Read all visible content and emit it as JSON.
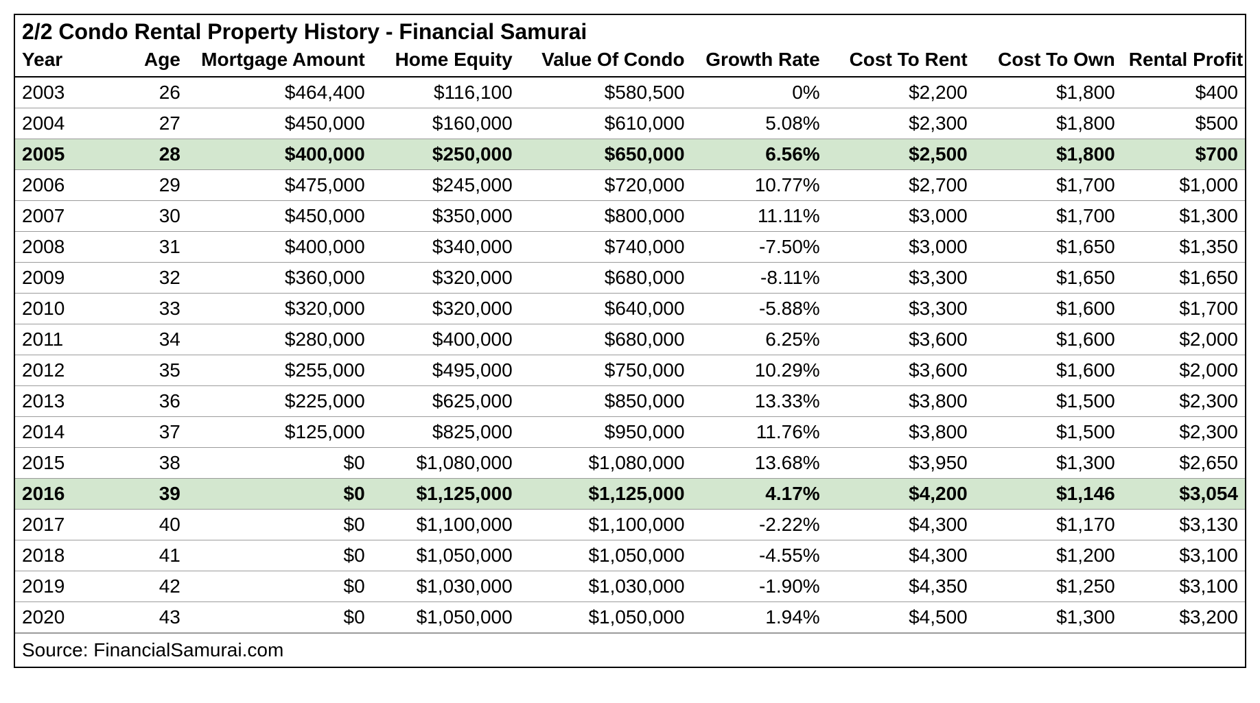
{
  "table": {
    "title": "2/2 Condo Rental Property History - Financial Samurai",
    "source": "Source: FinancialSamurai.com",
    "background_color": "#ffffff",
    "border_color": "#000000",
    "row_border_color": "#9a9a9a",
    "highlight_color": "#d3e7cf",
    "text_color": "#000000",
    "title_fontsize": 32,
    "header_fontsize": 28,
    "cell_fontsize": 28,
    "columns": [
      {
        "key": "year",
        "label": "Year",
        "align": "left"
      },
      {
        "key": "age",
        "label": "Age",
        "align": "right"
      },
      {
        "key": "mortgage",
        "label": "Mortgage Amount",
        "align": "right"
      },
      {
        "key": "equity",
        "label": "Home Equity",
        "align": "right"
      },
      {
        "key": "value",
        "label": "Value Of Condo",
        "align": "right"
      },
      {
        "key": "growth",
        "label": "Growth Rate",
        "align": "right"
      },
      {
        "key": "cost_rent",
        "label": "Cost To Rent",
        "align": "right"
      },
      {
        "key": "cost_own",
        "label": "Cost To Own",
        "align": "right"
      },
      {
        "key": "profit",
        "label": "Rental Profit",
        "align": "right"
      }
    ],
    "rows": [
      {
        "highlight": false,
        "year": "2003",
        "age": "26",
        "mortgage": "$464,400",
        "equity": "$116,100",
        "value": "$580,500",
        "growth": "0%",
        "cost_rent": "$2,200",
        "cost_own": "$1,800",
        "profit": "$400"
      },
      {
        "highlight": false,
        "year": "2004",
        "age": "27",
        "mortgage": "$450,000",
        "equity": "$160,000",
        "value": "$610,000",
        "growth": "5.08%",
        "cost_rent": "$2,300",
        "cost_own": "$1,800",
        "profit": "$500"
      },
      {
        "highlight": true,
        "year": "2005",
        "age": "28",
        "mortgage": "$400,000",
        "equity": "$250,000",
        "value": "$650,000",
        "growth": "6.56%",
        "cost_rent": "$2,500",
        "cost_own": "$1,800",
        "profit": "$700"
      },
      {
        "highlight": false,
        "year": "2006",
        "age": "29",
        "mortgage": "$475,000",
        "equity": "$245,000",
        "value": "$720,000",
        "growth": "10.77%",
        "cost_rent": "$2,700",
        "cost_own": "$1,700",
        "profit": "$1,000"
      },
      {
        "highlight": false,
        "year": "2007",
        "age": "30",
        "mortgage": "$450,000",
        "equity": "$350,000",
        "value": "$800,000",
        "growth": "11.11%",
        "cost_rent": "$3,000",
        "cost_own": "$1,700",
        "profit": "$1,300"
      },
      {
        "highlight": false,
        "year": "2008",
        "age": "31",
        "mortgage": "$400,000",
        "equity": "$340,000",
        "value": "$740,000",
        "growth": "-7.50%",
        "cost_rent": "$3,000",
        "cost_own": "$1,650",
        "profit": "$1,350"
      },
      {
        "highlight": false,
        "year": "2009",
        "age": "32",
        "mortgage": "$360,000",
        "equity": "$320,000",
        "value": "$680,000",
        "growth": "-8.11%",
        "cost_rent": "$3,300",
        "cost_own": "$1,650",
        "profit": "$1,650"
      },
      {
        "highlight": false,
        "year": "2010",
        "age": "33",
        "mortgage": "$320,000",
        "equity": "$320,000",
        "value": "$640,000",
        "growth": "-5.88%",
        "cost_rent": "$3,300",
        "cost_own": "$1,600",
        "profit": "$1,700"
      },
      {
        "highlight": false,
        "year": "2011",
        "age": "34",
        "mortgage": "$280,000",
        "equity": "$400,000",
        "value": "$680,000",
        "growth": "6.25%",
        "cost_rent": "$3,600",
        "cost_own": "$1,600",
        "profit": "$2,000"
      },
      {
        "highlight": false,
        "year": "2012",
        "age": "35",
        "mortgage": "$255,000",
        "equity": "$495,000",
        "value": "$750,000",
        "growth": "10.29%",
        "cost_rent": "$3,600",
        "cost_own": "$1,600",
        "profit": "$2,000"
      },
      {
        "highlight": false,
        "year": "2013",
        "age": "36",
        "mortgage": "$225,000",
        "equity": "$625,000",
        "value": "$850,000",
        "growth": "13.33%",
        "cost_rent": "$3,800",
        "cost_own": "$1,500",
        "profit": "$2,300"
      },
      {
        "highlight": false,
        "year": "2014",
        "age": "37",
        "mortgage": "$125,000",
        "equity": "$825,000",
        "value": "$950,000",
        "growth": "11.76%",
        "cost_rent": "$3,800",
        "cost_own": "$1,500",
        "profit": "$2,300"
      },
      {
        "highlight": false,
        "year": "2015",
        "age": "38",
        "mortgage": "$0",
        "equity": "$1,080,000",
        "value": "$1,080,000",
        "growth": "13.68%",
        "cost_rent": "$3,950",
        "cost_own": "$1,300",
        "profit": "$2,650"
      },
      {
        "highlight": true,
        "year": "2016",
        "age": "39",
        "mortgage": "$0",
        "equity": "$1,125,000",
        "value": "$1,125,000",
        "growth": "4.17%",
        "cost_rent": "$4,200",
        "cost_own": "$1,146",
        "profit": "$3,054"
      },
      {
        "highlight": false,
        "year": "2017",
        "age": "40",
        "mortgage": "$0",
        "equity": "$1,100,000",
        "value": "$1,100,000",
        "growth": "-2.22%",
        "cost_rent": "$4,300",
        "cost_own": "$1,170",
        "profit": "$3,130"
      },
      {
        "highlight": false,
        "year": "2018",
        "age": "41",
        "mortgage": "$0",
        "equity": "$1,050,000",
        "value": "$1,050,000",
        "growth": "-4.55%",
        "cost_rent": "$4,300",
        "cost_own": "$1,200",
        "profit": "$3,100"
      },
      {
        "highlight": false,
        "year": "2019",
        "age": "42",
        "mortgage": "$0",
        "equity": "$1,030,000",
        "value": "$1,030,000",
        "growth": "-1.90%",
        "cost_rent": "$4,350",
        "cost_own": "$1,250",
        "profit": "$3,100"
      },
      {
        "highlight": false,
        "year": "2020",
        "age": "43",
        "mortgage": "$0",
        "equity": "$1,050,000",
        "value": "$1,050,000",
        "growth": "1.94%",
        "cost_rent": "$4,500",
        "cost_own": "$1,300",
        "profit": "$3,200"
      }
    ]
  }
}
